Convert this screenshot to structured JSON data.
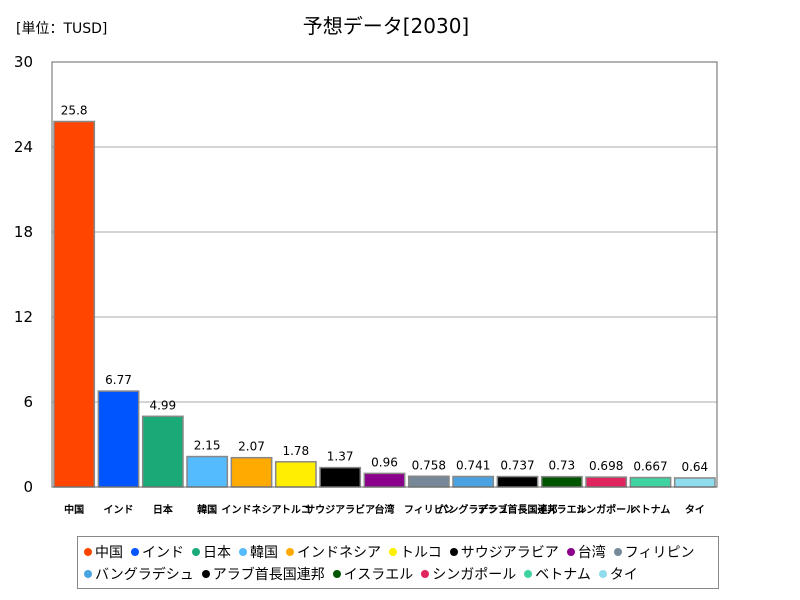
{
  "chart_data": {
    "type": "bar",
    "title": "予想データ[2030]",
    "unit_label": "[単位：TUSD]",
    "xlabel": "",
    "ylabel": "",
    "ylim": [
      0,
      30
    ],
    "yticks": [
      "0",
      "6",
      "12",
      "18",
      "24",
      "30"
    ],
    "grid": true,
    "legend_position": "bottom",
    "categories": [
      "中国",
      "インド",
      "日本",
      "韓国",
      "インドネシア",
      "トルコ",
      "サウジアラビア",
      "台湾",
      "フィリピン",
      "バングラデシュ",
      "アラブ首長国連邦",
      "イスラエル",
      "シンガポール",
      "ベトナム",
      "タイ"
    ],
    "values": [
      25.8,
      6.77,
      4.99,
      2.15,
      2.07,
      1.78,
      1.37,
      0.96,
      0.758,
      0.741,
      0.737,
      0.73,
      0.698,
      0.667,
      0.64
    ],
    "value_labels": [
      "25.8",
      "6.77",
      "4.99",
      "2.15",
      "2.07",
      "1.78",
      "1.37",
      "0.96",
      "0.758",
      "0.741",
      "0.737",
      "0.73",
      "0.698",
      "0.667",
      "0.64"
    ],
    "colors": [
      "#ff4500",
      "#0055ff",
      "#1aaa78",
      "#55bbff",
      "#ffaa00",
      "#ffee00",
      "#000000",
      "#8b008b",
      "#778899",
      "#4aa3e0",
      "#000000",
      "#005500",
      "#e0245e",
      "#3ed3a0",
      "#8fdcef"
    ]
  }
}
